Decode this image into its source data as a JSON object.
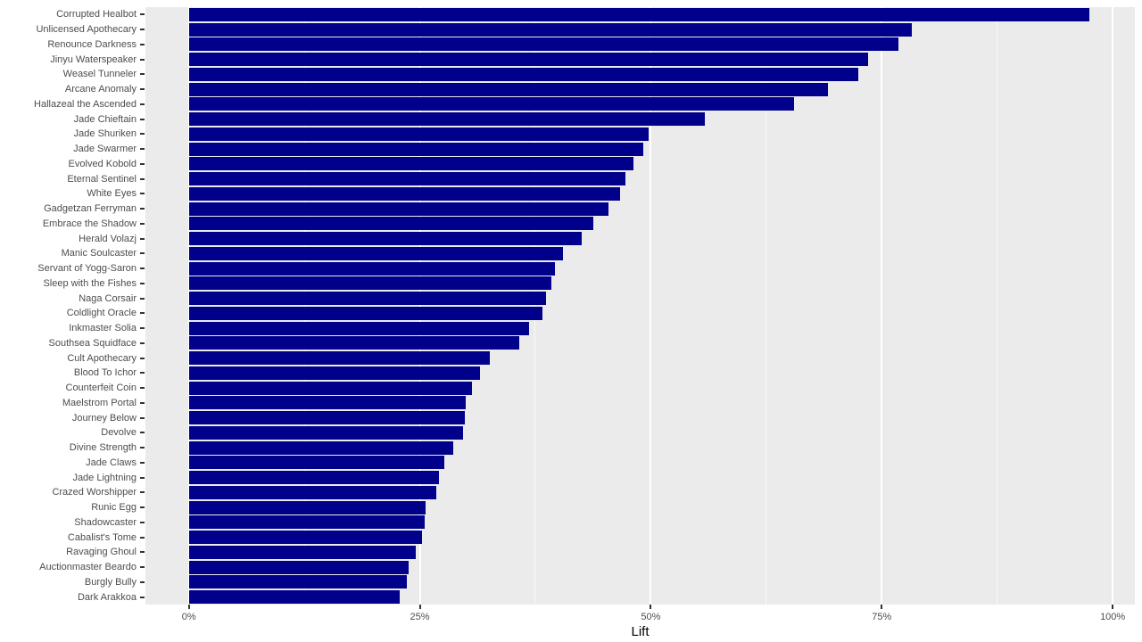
{
  "chart_data": {
    "type": "bar",
    "orientation": "horizontal",
    "title": "",
    "xlabel": "Lift",
    "ylabel": "",
    "legend": "none",
    "grid": true,
    "panel_bg": "#EBEBEB",
    "bar_color": "#00008B",
    "major_grid_color": "#FFFFFF",
    "axis_text_color": "#4D4D4D",
    "xlim": [
      -4.7,
      102.4
    ],
    "x_tick_values": [
      0,
      25,
      50,
      75,
      100
    ],
    "x_tick_labels": [
      "0%",
      "25%",
      "50%",
      "75%",
      "100%"
    ],
    "x_minor_tick_values": [
      12.5,
      37.5,
      62.5,
      87.5
    ],
    "categories": [
      "Corrupted Healbot",
      "Unlicensed Apothecary",
      "Renounce Darkness",
      "Jinyu Waterspeaker",
      "Weasel Tunneler",
      "Arcane Anomaly",
      "Hallazeal the Ascended",
      "Jade Chieftain",
      "Jade Shuriken",
      "Jade Swarmer",
      "Evolved Kobold",
      "Eternal Sentinel",
      "White Eyes",
      "Gadgetzan Ferryman",
      "Embrace the Shadow",
      "Herald Volazj",
      "Manic Soulcaster",
      "Servant of Yogg-Saron",
      "Sleep with the Fishes",
      "Naga Corsair",
      "Coldlight Oracle",
      "Inkmaster Solia",
      "Southsea Squidface",
      "Cult Apothecary",
      "Blood To Ichor",
      "Counterfeit Coin",
      "Maelstrom Portal",
      "Journey Below",
      "Devolve",
      "Divine Strength",
      "Jade Claws",
      "Jade Lightning",
      "Crazed Worshipper",
      "Runic Egg",
      "Shadowcaster",
      "Cabalist's Tome",
      "Ravaging Ghoul",
      "Auctionmaster Beardo",
      "Burgly Bully",
      "Dark Arakkoa"
    ],
    "values": [
      97.5,
      78.3,
      76.8,
      73.5,
      72.5,
      69.2,
      65.5,
      55.9,
      49.8,
      49.2,
      48.1,
      47.3,
      46.7,
      45.4,
      43.8,
      42.5,
      40.5,
      39.6,
      39.2,
      38.7,
      38.3,
      36.8,
      35.8,
      32.6,
      31.5,
      30.6,
      30.0,
      29.9,
      29.7,
      28.6,
      27.7,
      27.1,
      26.8,
      25.6,
      25.5,
      25.2,
      24.6,
      23.8,
      23.6,
      22.8
    ]
  }
}
